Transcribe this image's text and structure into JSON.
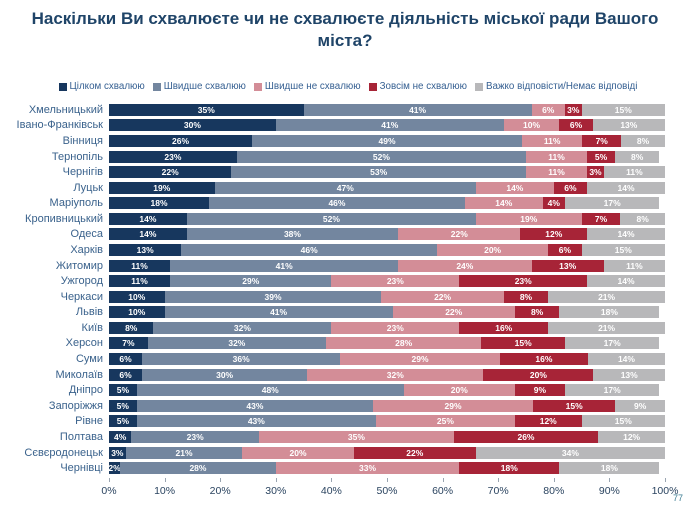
{
  "title": "Наскільки Ви схвалюєте чи не схвалюєте діяльність міської ради Вашого міста?",
  "page_number": "77",
  "colors": {
    "title_text": "#1F4468",
    "legend_text": "#366092",
    "category_label_text": "#3A628C",
    "axis_label_text": "#2B4460",
    "background": "#FFFFFF"
  },
  "chart_data": {
    "type": "bar",
    "stacked": true,
    "orientation": "horizontal",
    "legend_position": "top",
    "value_suffix": "%",
    "xlim": [
      0,
      100
    ],
    "x_ticks": [
      "0%",
      "10%",
      "20%",
      "30%",
      "40%",
      "50%",
      "60%",
      "70%",
      "80%",
      "90%",
      "100%"
    ],
    "series": [
      {
        "name": "Цілком схвалюю",
        "color": "#17375E"
      },
      {
        "name": "Швидше схвалюю",
        "color": "#73869F"
      },
      {
        "name": "Швидше не схвалюю",
        "color": "#D38D97"
      },
      {
        "name": "Зовсім не схвалюю",
        "color": "#A72437"
      },
      {
        "name": "Важко відповісти/Немає відповіді",
        "color": "#B8B8BA"
      }
    ],
    "categories": [
      "Хмельницький",
      "Івано-Франківськ",
      "Вінниця",
      "Тернопіль",
      "Чернігів",
      "Луцьк",
      "Маріуполь",
      "Кропивницький",
      "Одеса",
      "Харків",
      "Житомир",
      "Ужгород",
      "Черкаси",
      "Львів",
      "Київ",
      "Херсон",
      "Суми",
      "Миколаїв",
      "Дніпро",
      "Запоріжжя",
      "Рівне",
      "Полтава",
      "Сєвєродонецьк",
      "Чернівці"
    ],
    "values": [
      [
        35,
        41,
        6,
        3,
        15
      ],
      [
        30,
        41,
        10,
        6,
        13
      ],
      [
        26,
        49,
        11,
        7,
        8
      ],
      [
        23,
        52,
        11,
        5,
        8
      ],
      [
        22,
        53,
        11,
        3,
        11
      ],
      [
        19,
        47,
        14,
        6,
        14
      ],
      [
        18,
        46,
        14,
        4,
        17
      ],
      [
        14,
        52,
        19,
        7,
        8
      ],
      [
        14,
        38,
        22,
        12,
        14
      ],
      [
        13,
        46,
        20,
        6,
        15
      ],
      [
        11,
        41,
        24,
        13,
        11
      ],
      [
        11,
        29,
        23,
        23,
        14
      ],
      [
        10,
        39,
        22,
        8,
        21
      ],
      [
        10,
        41,
        22,
        8,
        18
      ],
      [
        8,
        32,
        23,
        16,
        21
      ],
      [
        7,
        32,
        28,
        15,
        17
      ],
      [
        6,
        36,
        29,
        16,
        14
      ],
      [
        6,
        30,
        32,
        20,
        13
      ],
      [
        5,
        48,
        20,
        9,
        17
      ],
      [
        5,
        43,
        29,
        15,
        9
      ],
      [
        5,
        43,
        25,
        12,
        15
      ],
      [
        4,
        23,
        35,
        26,
        12
      ],
      [
        3,
        21,
        20,
        22,
        34
      ],
      [
        2,
        28,
        33,
        18,
        18
      ]
    ]
  }
}
